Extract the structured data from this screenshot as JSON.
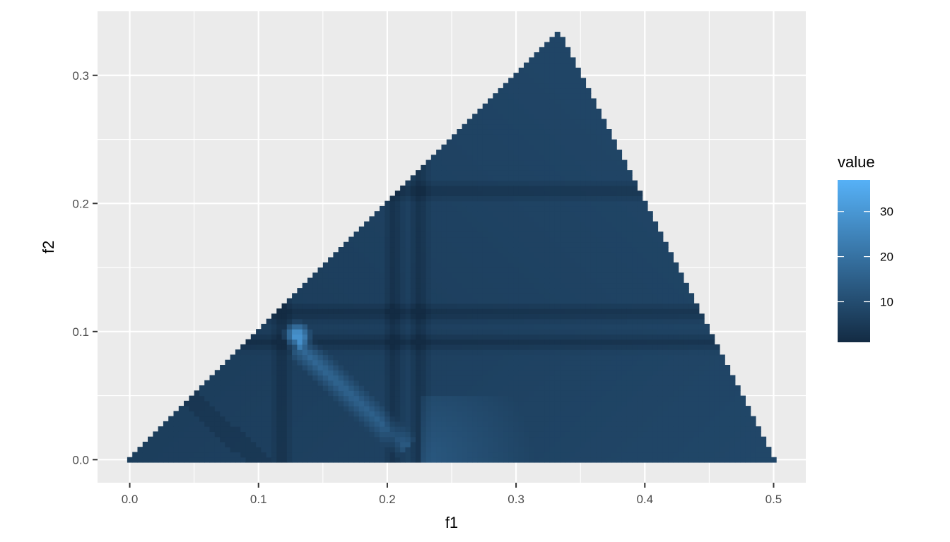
{
  "chart_data": {
    "type": "heatmap",
    "title": "",
    "xlabel": "f1",
    "ylabel": "f2",
    "xlim": [
      -0.025,
      0.525
    ],
    "ylim": [
      -0.018,
      0.35
    ],
    "x_ticks": [
      {
        "value": 0.0,
        "label": "0.0"
      },
      {
        "value": 0.1,
        "label": "0.1"
      },
      {
        "value": 0.2,
        "label": "0.2"
      },
      {
        "value": 0.3,
        "label": "0.3"
      },
      {
        "value": 0.4,
        "label": "0.4"
      },
      {
        "value": 0.5,
        "label": "0.5"
      }
    ],
    "y_ticks": [
      {
        "value": 0.0,
        "label": "0.0"
      },
      {
        "value": 0.1,
        "label": "0.1"
      },
      {
        "value": 0.2,
        "label": "0.2"
      },
      {
        "value": 0.3,
        "label": "0.3"
      }
    ],
    "grid": true,
    "domain": {
      "description_vertices": [
        [
          0.0,
          0.0
        ],
        [
          0.3333,
          0.3333
        ],
        [
          0.5,
          0.0
        ]
      ],
      "cell_size": 0.004
    },
    "features": {
      "base_value": 6,
      "dark_lines_f1": [
        0.118,
        0.205,
        0.225
      ],
      "dark_lines_f2": [
        0.092,
        0.115,
        0.21
      ],
      "hotspot": {
        "f1": 0.13,
        "f2": 0.097,
        "value": 36
      },
      "ridge": {
        "from": [
          0.13,
          0.09
        ],
        "to": [
          0.215,
          0.01
        ],
        "value": 18
      }
    },
    "legend": {
      "title": "value",
      "position": "right",
      "min": 1,
      "max": 37,
      "ticks": [
        {
          "value": 10,
          "label": "10"
        },
        {
          "value": 20,
          "label": "20"
        },
        {
          "value": 30,
          "label": "30"
        }
      ],
      "color_low": "#132B43",
      "color_high": "#56B1F7"
    },
    "colors": {
      "panel_background": "#EBEBEB",
      "grid_major": "#FFFFFF",
      "axis_tick": "#333333"
    }
  }
}
